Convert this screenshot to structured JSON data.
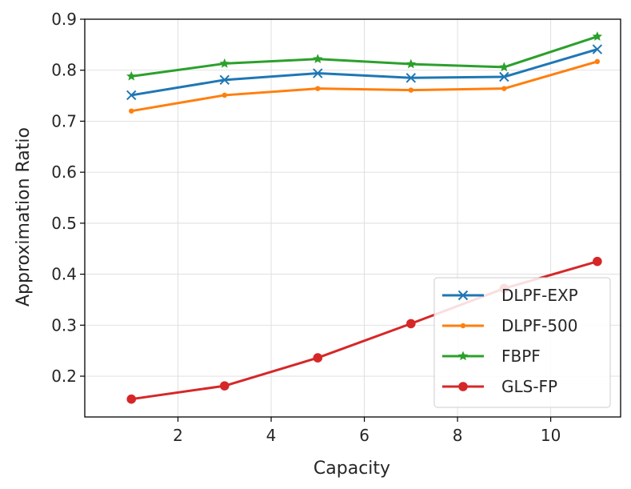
{
  "chart_data": {
    "type": "line",
    "title": "",
    "xlabel": "Capacity",
    "ylabel": "Approximation Ratio",
    "x": [
      1,
      3,
      5,
      7,
      9,
      11
    ],
    "xlim": [
      0.0,
      11.5
    ],
    "ylim": [
      0.12,
      0.9
    ],
    "xticks": [
      2,
      4,
      6,
      8,
      10
    ],
    "yticks": [
      0.2,
      0.3,
      0.4,
      0.5,
      0.6,
      0.7,
      0.8,
      0.9
    ],
    "xtick_labels": [
      "2",
      "4",
      "6",
      "8",
      "10"
    ],
    "ytick_labels": [
      "0.2",
      "0.3",
      "0.4",
      "0.5",
      "0.6",
      "0.7",
      "0.8",
      "0.9"
    ],
    "grid": true,
    "legend_position": "bottom-right",
    "series": [
      {
        "name": "DLPF-EXP",
        "color": "#1f77b4",
        "marker": "x",
        "values": [
          0.751,
          0.781,
          0.794,
          0.785,
          0.787,
          0.841
        ]
      },
      {
        "name": "DLPF-500",
        "color": "#ff7f0e",
        "marker": "point",
        "values": [
          0.72,
          0.751,
          0.764,
          0.761,
          0.764,
          0.817
        ]
      },
      {
        "name": "FBPF",
        "color": "#2ca02c",
        "marker": "star",
        "values": [
          0.788,
          0.813,
          0.822,
          0.812,
          0.806,
          0.866
        ]
      },
      {
        "name": "GLS-FP",
        "color": "#d62728",
        "marker": "circle",
        "values": [
          0.155,
          0.181,
          0.236,
          0.303,
          0.372,
          0.425
        ]
      }
    ]
  }
}
